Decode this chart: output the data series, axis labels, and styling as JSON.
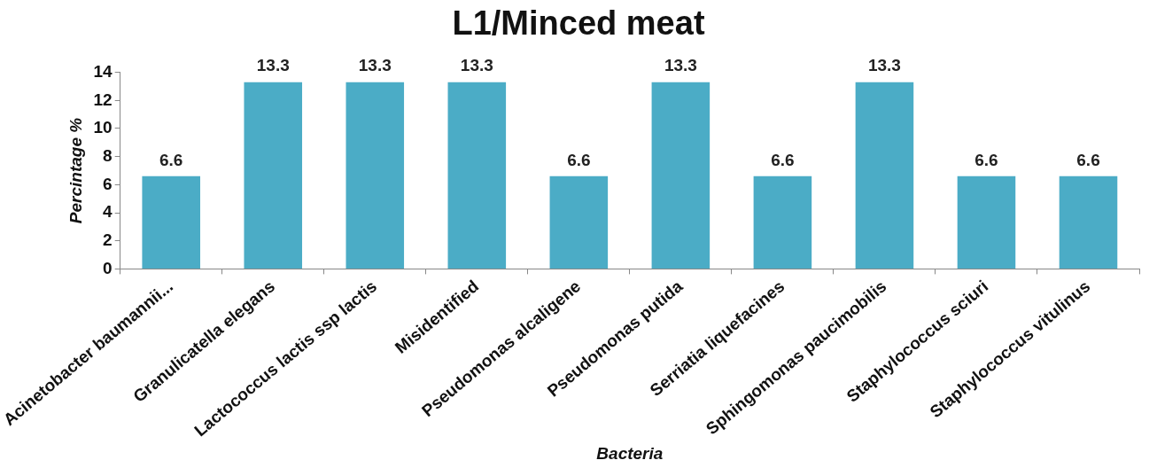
{
  "chart_data": {
    "type": "bar",
    "title": "L1/Minced meat",
    "xlabel": "Bacteria",
    "ylabel": "Percintage %",
    "categories": [
      "Acinetobacter baumannii...",
      "Granulicatella elegans",
      "Lactococcus lactis ssp lactis",
      "Misidentified",
      "Pseudomonas alcaligene",
      "Pseudomonas putida",
      "Serriatia liquefacines",
      "Sphingomonas paucimobilis",
      "Staphylococcus sciuri",
      "Staphylococcus vitulinus"
    ],
    "values": [
      6.6,
      13.3,
      13.3,
      13.3,
      6.6,
      13.3,
      6.6,
      13.3,
      6.6,
      6.6
    ],
    "color": "#4bacc6",
    "ylim": [
      0,
      14
    ],
    "yticks": [
      0,
      2,
      4,
      6,
      8,
      10,
      12,
      14
    ],
    "grid": false,
    "legend": false,
    "data_labels": true
  }
}
